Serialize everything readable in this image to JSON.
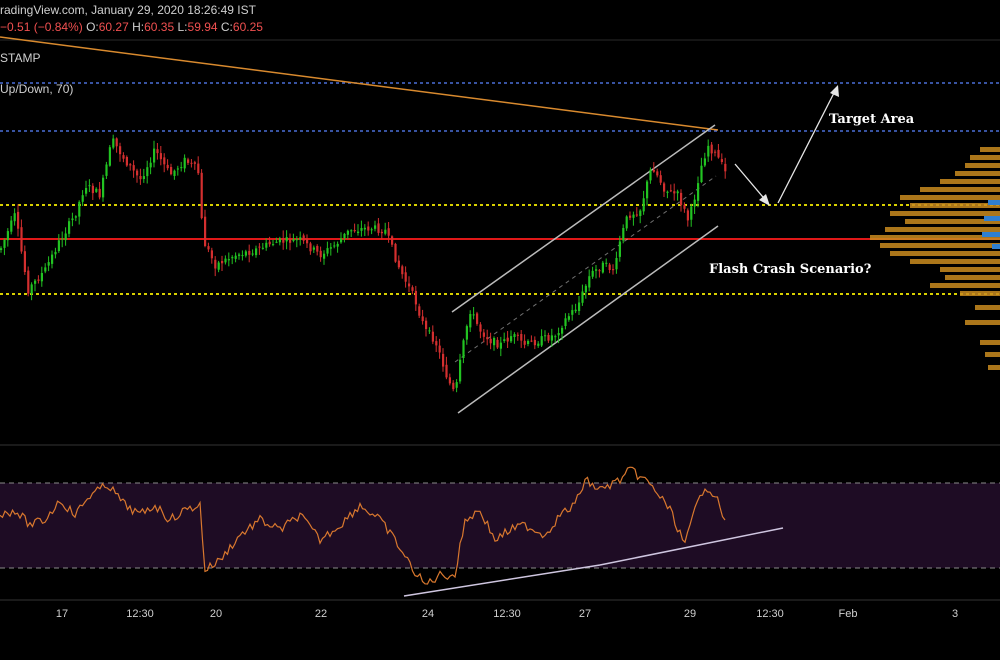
{
  "header": {
    "site_text": "radingView.com, January 29, 2020 18:26:49 IST",
    "change": "−0.51 (−0.84%)",
    "open_key": "O:",
    "open": "60.27",
    "high_key": "H:",
    "high": "60.35",
    "low_key": "L:",
    "low": "59.94",
    "close_key": "C:",
    "close": "60.25",
    "symbol_fragment": "STAMP",
    "indicator_fragment": "Up/Down, 70)"
  },
  "annotations": {
    "target": "Target Area",
    "flash": "Flash Crash Scenario?"
  },
  "colors": {
    "up": "#22c322",
    "down": "#d42f2f",
    "support_line": "#e01818",
    "dotted_levels": "#d8d000",
    "blue_levels": "#4a6fd8",
    "trendline": "#d98a2e",
    "channel": "#bbbbbb",
    "osc_line": "#d9782e",
    "osc_band": "#1e0c24",
    "volume_profile": "#c98b1e"
  },
  "chart_data": [
    {
      "type": "candlestick",
      "title": "",
      "x_tick_labels": [
        "17",
        "12:30",
        "20",
        "22",
        "24",
        "12:30",
        "27",
        "29",
        "12:30",
        "Feb",
        "3"
      ],
      "last_bar": {
        "open": 60.27,
        "high": 60.35,
        "low": 59.94,
        "close": 60.25
      },
      "horizontal_levels": [
        {
          "kind": "blue-dotted-upper",
          "value": 62.3
        },
        {
          "kind": "blue-dotted-lower",
          "value": 61.2
        },
        {
          "kind": "yellow-dotted-upper",
          "value": 60.0
        },
        {
          "kind": "red-solid",
          "value": 59.3
        },
        {
          "kind": "yellow-dotted-lower",
          "value": 58.3
        }
      ],
      "y_range": [
        55.5,
        63.2
      ],
      "series": [
        {
          "approx_close_path_by_day": [
            [
              "16",
              59.3
            ],
            [
              "17",
              60.8
            ],
            [
              "17 12:30",
              61.2
            ],
            [
              "18",
              60.6
            ],
            [
              "19",
              60.5
            ],
            [
              "20",
              59.0
            ],
            [
              "21",
              59.2
            ],
            [
              "22",
              59.4
            ],
            [
              "23",
              59.0
            ],
            [
              "24",
              56.1
            ],
            [
              "24 12:30",
              57.8
            ],
            [
              "25",
              57.0
            ],
            [
              "26",
              57.6
            ],
            [
              "27",
              58.9
            ],
            [
              "28",
              60.9
            ],
            [
              "29",
              61.1
            ],
            [
              "29 now",
              60.25
            ]
          ]
        }
      ]
    },
    {
      "type": "line",
      "title": "",
      "ylabel": "",
      "band_levels": [
        70,
        30
      ],
      "y_range": [
        0,
        100
      ],
      "series": [
        {
          "approx_values_by_day": [
            [
              "16",
              55
            ],
            [
              "17",
              68
            ],
            [
              "17 12:30",
              72
            ],
            [
              "18",
              60
            ],
            [
              "19",
              62
            ],
            [
              "20",
              28
            ],
            [
              "21",
              48
            ],
            [
              "22",
              55
            ],
            [
              "23",
              42
            ],
            [
              "24",
              18
            ],
            [
              "24 12:30",
              45
            ],
            [
              "25",
              40
            ],
            [
              "26",
              52
            ],
            [
              "27",
              62
            ],
            [
              "28",
              78
            ],
            [
              "29",
              52
            ],
            [
              "29 now",
              48
            ]
          ]
        }
      ],
      "divergence_lines": [
        "rising support through oscillator lows"
      ]
    }
  ]
}
